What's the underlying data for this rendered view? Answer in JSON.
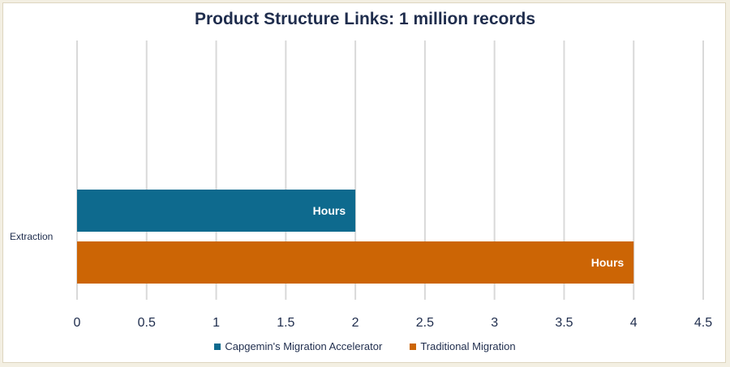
{
  "chart_data": {
    "type": "bar",
    "orientation": "horizontal",
    "title": "Product Structure Links: 1 million records",
    "categories": [
      "Extraction"
    ],
    "series": [
      {
        "name": "Capgemin's Migration Accelerator",
        "values": [
          2
        ],
        "label": "Hours",
        "color": "#0e6a8e"
      },
      {
        "name": "Traditional Migration",
        "values": [
          4
        ],
        "label": "Hours",
        "color": "#cc6505"
      }
    ],
    "xlim": [
      0,
      4.5
    ],
    "xticks": [
      0,
      0.5,
      1,
      1.5,
      2,
      2.5,
      3,
      3.5,
      4,
      4.5
    ],
    "xtick_labels": [
      "0",
      "0.5",
      "1",
      "1.5",
      "2",
      "2.5",
      "3",
      "3.5",
      "4",
      "4.5"
    ],
    "grid": true,
    "legend_position": "bottom"
  }
}
